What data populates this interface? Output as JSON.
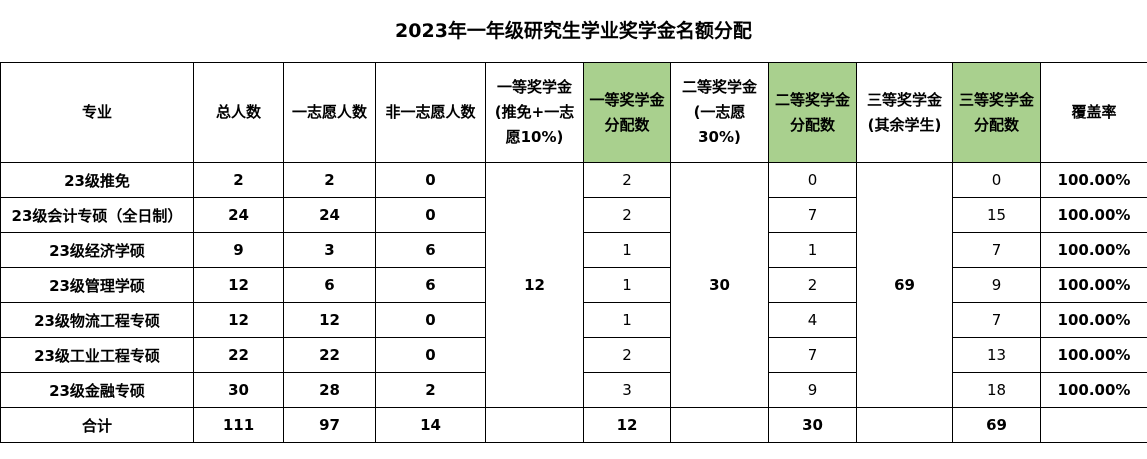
{
  "title": "2023年一年级研究生学业奖学金名额分配",
  "headers": [
    "专业",
    "总人数",
    "一志愿人数",
    "非一志愿人数",
    "一等奖学金(推免+一志愿10%)",
    "一等奖学金分配数",
    "二等奖学金(一志愿30%)",
    "二等奖学金分配数",
    "三等奖学金(其余学生)",
    "三等奖学金分配数",
    "覆盖率"
  ],
  "highlight_color": "#A9D08E",
  "rows": [
    {
      "major": "23级推免",
      "total": "2",
      "first": "2",
      "nonfirst": "0",
      "a1": "2",
      "a2": "0",
      "a3": "0",
      "coverage": "100.00%"
    },
    {
      "major": "23级会计专硕（全日制）",
      "total": "24",
      "first": "24",
      "nonfirst": "0",
      "a1": "2",
      "a2": "7",
      "a3": "15",
      "coverage": "100.00%"
    },
    {
      "major": "23级经济学硕",
      "total": "9",
      "first": "3",
      "nonfirst": "6",
      "a1": "1",
      "a2": "1",
      "a3": "7",
      "coverage": "100.00%"
    },
    {
      "major": "23级管理学硕",
      "total": "12",
      "first": "6",
      "nonfirst": "6",
      "a1": "1",
      "a2": "2",
      "a3": "9",
      "coverage": "100.00%"
    },
    {
      "major": "23级物流工程专硕",
      "total": "12",
      "first": "12",
      "nonfirst": "0",
      "a1": "1",
      "a2": "4",
      "a3": "7",
      "coverage": "100.00%"
    },
    {
      "major": "23级工业工程专硕",
      "total": "22",
      "first": "22",
      "nonfirst": "0",
      "a1": "2",
      "a2": "7",
      "a3": "13",
      "coverage": "100.00%"
    },
    {
      "major": "23级金融专硕",
      "total": "30",
      "first": "28",
      "nonfirst": "2",
      "a1": "3",
      "a2": "9",
      "a3": "18",
      "coverage": "100.00%"
    }
  ],
  "quota": {
    "first": "12",
    "second": "30",
    "third": "69"
  },
  "total": {
    "label": "合计",
    "total": "111",
    "first": "97",
    "nonfirst": "14",
    "a1": "12",
    "a2": "30",
    "a3": "69"
  }
}
